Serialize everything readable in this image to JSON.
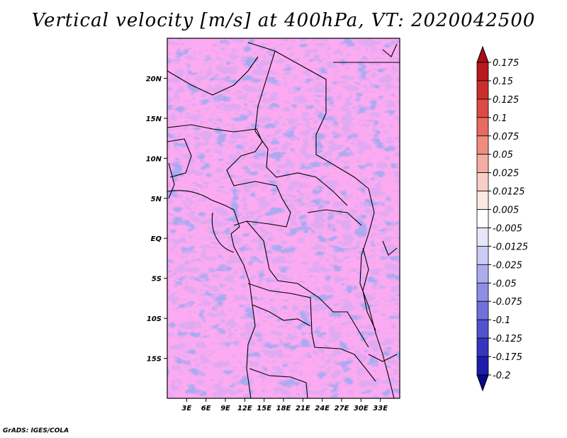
{
  "title": "Vertical velocity [m/s] at 400hPa, VT: 2020042500",
  "credit": "GrADS: IGES/COLA",
  "map": {
    "lon_range": [
      0,
      36
    ],
    "lat_range": [
      -20,
      25
    ],
    "x_ticks": [
      "3E",
      "6E",
      "9E",
      "12E",
      "15E",
      "18E",
      "21E",
      "24E",
      "27E",
      "30E",
      "33E"
    ],
    "x_tick_values": [
      3,
      6,
      9,
      12,
      15,
      18,
      21,
      24,
      27,
      30,
      33
    ],
    "y_ticks": [
      "20N",
      "15N",
      "10N",
      "5N",
      "EQ",
      "5S",
      "10S",
      "15S"
    ],
    "y_tick_values": [
      20,
      15,
      10,
      5,
      0,
      -5,
      -10,
      -15
    ]
  },
  "colorbar": {
    "labels": [
      "0.175",
      "0.15",
      "0.125",
      "0.1",
      "0.075",
      "0.05",
      "0.025",
      "0.0125",
      "0.005",
      "-0.005",
      "-0.0125",
      "-0.025",
      "-0.05",
      "-0.075",
      "-0.1",
      "-0.125",
      "-0.175",
      "-0.2"
    ],
    "colors": [
      "#a50f15",
      "#b8191e",
      "#cb2f2c",
      "#dc4a43",
      "#e66b60",
      "#ee8d80",
      "#f4ada2",
      "#f9cec6",
      "#fde8e3",
      "#ffffff",
      "#e7e7fb",
      "#cbcbf5",
      "#adadee",
      "#8e8ee6",
      "#7070dc",
      "#5252cf",
      "#3535c0",
      "#1d1dab",
      "#0a0a8a"
    ]
  }
}
